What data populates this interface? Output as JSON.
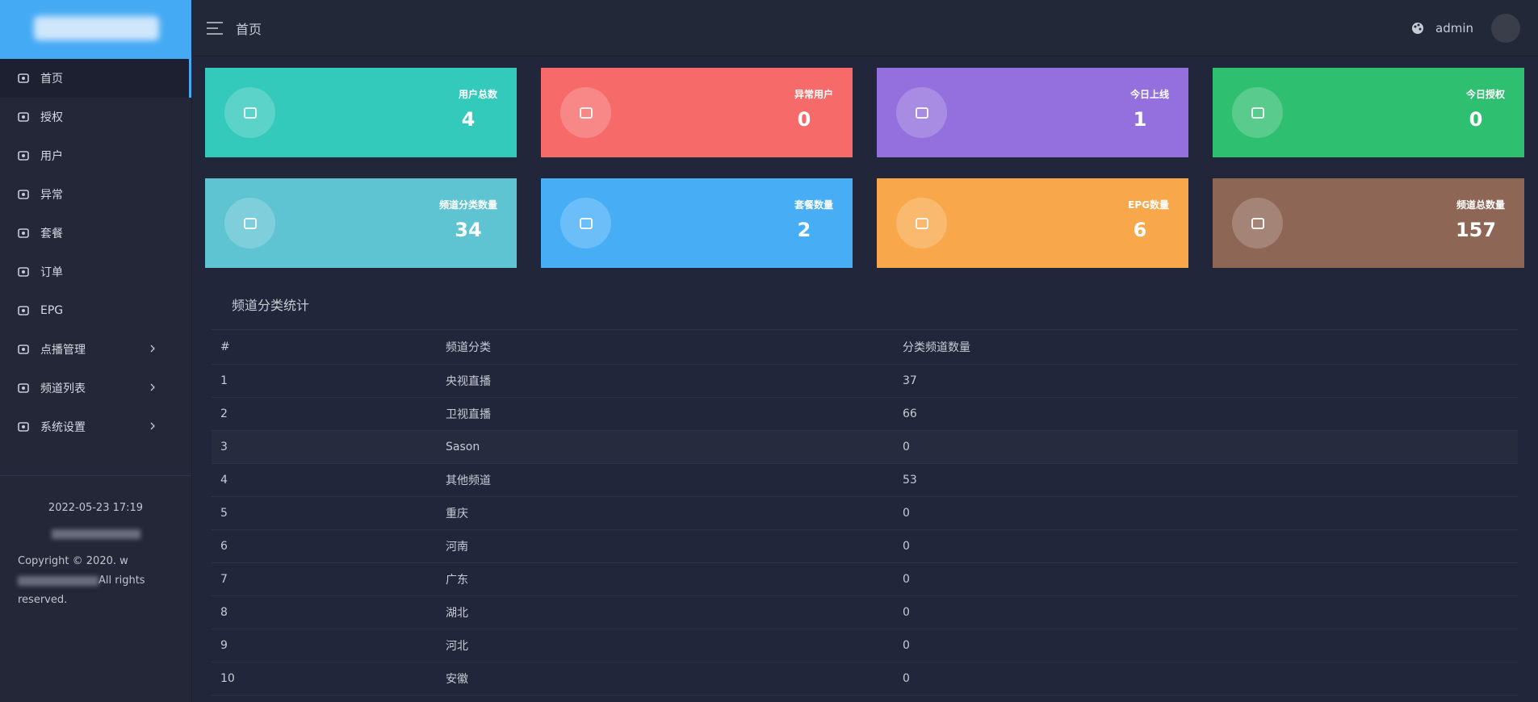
{
  "header": {
    "title": "首页",
    "user": "admin"
  },
  "sidebar": {
    "menu": [
      {
        "label": "首页"
      },
      {
        "label": "授权"
      },
      {
        "label": "用户"
      },
      {
        "label": "异常"
      },
      {
        "label": "套餐"
      },
      {
        "label": "订单"
      },
      {
        "label": "EPG"
      },
      {
        "label": "点播管理",
        "expandable": true
      },
      {
        "label": "频道列表",
        "expandable": true
      },
      {
        "label": "系统设置",
        "expandable": true
      }
    ],
    "date": "2022-05-23 17:19",
    "copyright_prefix": "Copyright © 2020. w",
    "copyright_suffix": "All rights reserved."
  },
  "cards": [
    {
      "label": "用户总数",
      "value": 4,
      "color": "#33c9bb"
    },
    {
      "label": "异常用户",
      "value": 0,
      "color": "#f76a6a"
    },
    {
      "label": "今日上线",
      "value": 1,
      "color": "#9370dd"
    },
    {
      "label": "今日授权",
      "value": 0,
      "color": "#2fbf71"
    },
    {
      "label": "频道分类数量",
      "value": 34,
      "color": "#5ec4d2"
    },
    {
      "label": "套餐数量",
      "value": 2,
      "color": "#47aef6"
    },
    {
      "label": "EPG数量",
      "value": 6,
      "color": "#f8a84a"
    },
    {
      "label": "频道总数量",
      "value": 157,
      "color": "#8d6656"
    }
  ],
  "table": {
    "title": "频道分类统计",
    "columns": [
      "#",
      "频道分类",
      "分类频道数量"
    ],
    "rows": [
      [
        1,
        "央视直播",
        37
      ],
      [
        2,
        "卫视直播",
        66
      ],
      [
        3,
        "Sason",
        0
      ],
      [
        4,
        "其他频道",
        53
      ],
      [
        5,
        "重庆",
        0
      ],
      [
        6,
        "河南",
        0
      ],
      [
        7,
        "广东",
        0
      ],
      [
        8,
        "湖北",
        0
      ],
      [
        9,
        "河北",
        0
      ],
      [
        10,
        "安徽",
        0
      ]
    ]
  }
}
